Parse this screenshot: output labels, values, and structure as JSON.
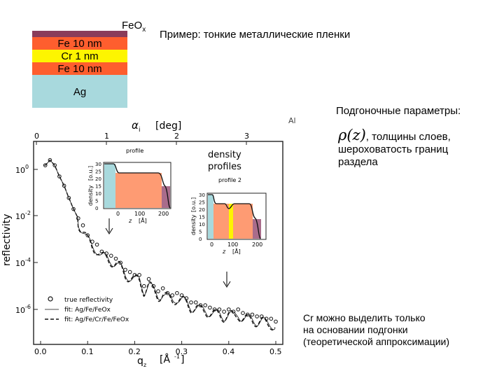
{
  "slide": {
    "title": "Пример: тонкие металлические пленки",
    "fit_params_heading": "Подгоночные параметры:",
    "fit_params_symbol": "ρ(z)",
    "fit_params_text_1": ", толщины слоев,",
    "fit_params_text_2": "шероховатость границ",
    "fit_params_text_3": "раздела",
    "cr_note_1": "Cr можно выделить только",
    "cr_note_2": "на основании подгонки",
    "cr_note_3": "(теоретической аппроксимации)"
  },
  "stack": {
    "top_label": "FeOx",
    "top_label_main": "FeO",
    "top_label_sub": "x",
    "layers": [
      {
        "label": "Fe 10 nm",
        "color": "#fe5e2e"
      },
      {
        "label": "Cr 1 nm",
        "color": "#fdf500"
      },
      {
        "label": "Fe 10 nm",
        "color": "#fe5e2e"
      },
      {
        "label": "Ag",
        "color": "#a8d9dd"
      }
    ],
    "feox_color": "#8a3c5a"
  },
  "figure": {
    "top_axis_label": "α",
    "top_axis_sub": "i",
    "top_axis_unit": "[deg]",
    "top_ticks": [
      "0",
      "1",
      "2",
      "3"
    ],
    "x_ticks": [
      "0.0",
      "0.1",
      "0.2",
      "0.3",
      "0.4",
      "0.5"
    ],
    "y_ticks_base": [
      "10",
      "10",
      "10",
      "10"
    ],
    "y_ticks_exp": [
      "0",
      "-2",
      "-4",
      "-6"
    ],
    "xlabel": "q",
    "xlabel_sub": "z",
    "xlabel_unit": "[Å",
    "xlabel_unit_exp": "-1",
    "xlabel_unit_end": "]",
    "ylabel": "reflectivity",
    "density_title_1": "density",
    "density_title_2": "profiles",
    "profile1_label": "profile",
    "profile2_label": "profile 2",
    "inset_ylabel": "density",
    "inset_yunit": "[o.u.]",
    "inset_xlabel": "z",
    "inset_xunit": "[Å]",
    "inset1_yticks": [
      "30",
      "25",
      "20",
      "15",
      "10",
      "5",
      "0"
    ],
    "inset2_yticks": [
      "30",
      "25",
      "20",
      "15",
      "10",
      "5",
      "0"
    ],
    "inset_xticks": [
      "0",
      "100",
      "200"
    ],
    "legend": [
      {
        "marker": "o",
        "label": "true reflectivity"
      },
      {
        "marker": "thin",
        "label": "fit: Ag/Fe/FeOx"
      },
      {
        "marker": "dash",
        "label": "fit: Ag/Fe/Cr/Fe/FeOx"
      }
    ],
    "fragment_label": "Al"
  },
  "chart_data": {
    "type": "scatter",
    "xlabel": "qz [Å-1]",
    "ylabel": "reflectivity",
    "xlim": [
      0.0,
      0.5
    ],
    "ylog": true,
    "ylim": [
      1e-07,
      10
    ],
    "series": [
      {
        "name": "true reflectivity",
        "x": [
          0.01,
          0.02,
          0.03,
          0.04,
          0.05,
          0.06,
          0.07,
          0.08,
          0.09,
          0.1,
          0.11,
          0.12,
          0.13,
          0.14,
          0.15,
          0.16,
          0.17,
          0.18,
          0.19,
          0.2,
          0.21,
          0.22,
          0.23,
          0.24,
          0.25,
          0.26,
          0.27,
          0.28,
          0.29,
          0.3,
          0.31,
          0.32,
          0.33,
          0.34,
          0.35,
          0.36,
          0.37,
          0.38,
          0.39,
          0.4,
          0.41,
          0.42,
          0.43,
          0.44,
          0.45,
          0.46,
          0.47,
          0.48,
          0.49,
          0.5
        ],
        "y": [
          1.5,
          2.5,
          1.5,
          0.5,
          0.2,
          0.06,
          0.02,
          0.008,
          0.004,
          0.0015,
          0.0008,
          0.0006,
          0.0003,
          0.00025,
          0.0002,
          0.00015,
          0.0001,
          5e-05,
          4e-05,
          3e-05,
          3e-05,
          1e-05,
          2e-05,
          1e-05,
          6e-06,
          8e-06,
          5e-06,
          4e-06,
          5e-06,
          4e-06,
          3e-06,
          2e-06,
          2e-06,
          1.5e-06,
          1.5e-06,
          1.2e-06,
          1e-06,
          1e-06,
          8e-07,
          1e-06,
          8e-07,
          1e-06,
          7e-07,
          6e-07,
          6e-07,
          5e-07,
          5e-07,
          4e-07,
          4e-07,
          3e-07
        ]
      }
    ]
  }
}
